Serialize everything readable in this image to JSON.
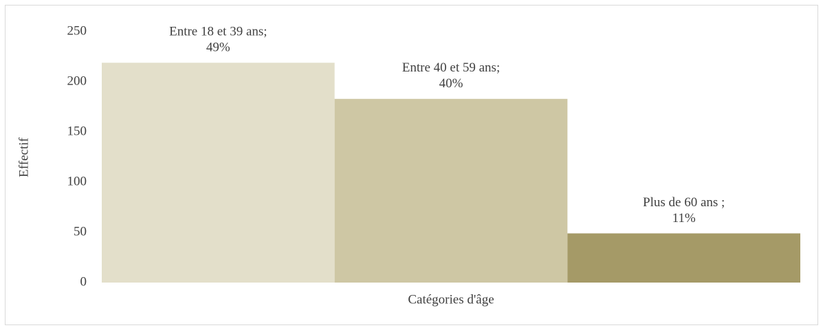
{
  "chart_data": {
    "type": "bar",
    "categories": [
      "Entre 18 et 39 ans;",
      "Entre 40 et 59 ans;",
      "Plus de 60 ans ;"
    ],
    "values": [
      219,
      183,
      49
    ],
    "share_labels": [
      "49%",
      "40%",
      "11%"
    ],
    "colors": [
      "#e3dfca",
      "#cec7a4",
      "#a59a67"
    ],
    "x_label": "Catégories d'âge",
    "y_label": "Effectif",
    "ylim": [
      0,
      250
    ],
    "yticks": [
      0,
      50,
      100,
      150,
      200,
      250
    ],
    "grid": false
  }
}
